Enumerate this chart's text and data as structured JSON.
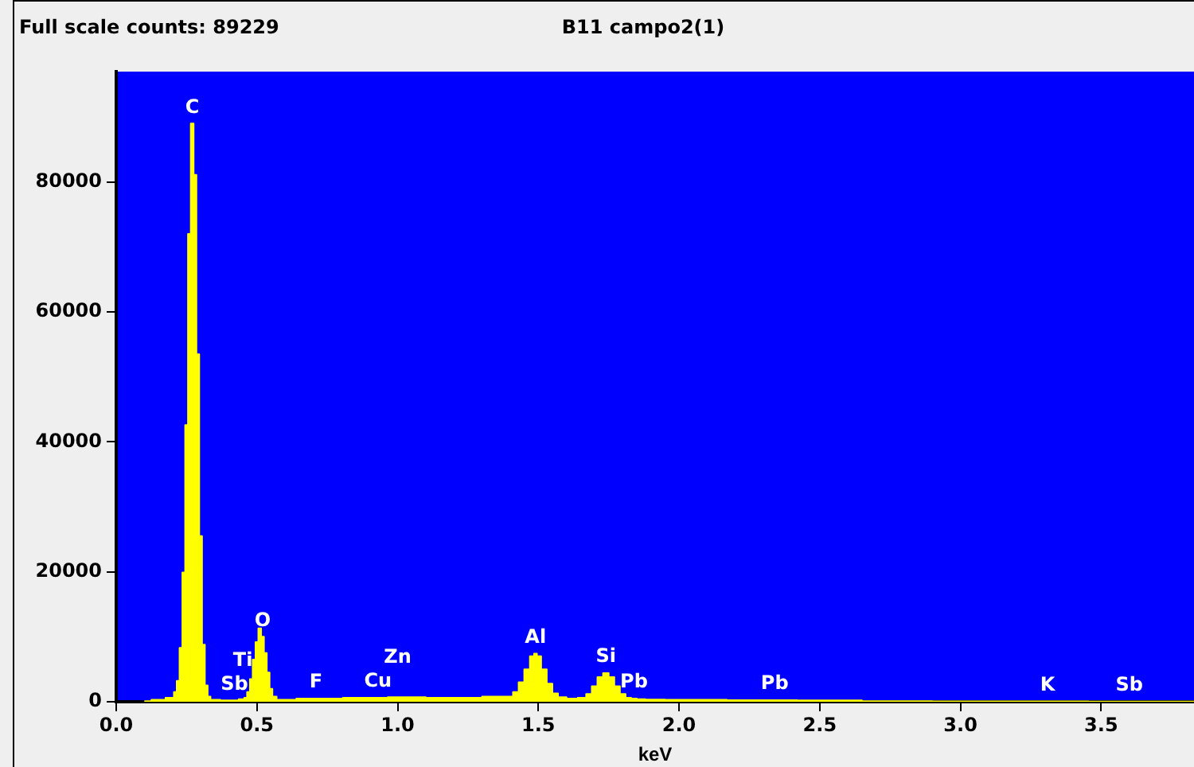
{
  "chart_data": {
    "type": "area",
    "title": "B11 campo2(1)",
    "xlabel": "keV",
    "annotations": [
      "Full scale counts: 89229",
      {
        "text": "C",
        "x": 0.27,
        "y": 89000
      },
      {
        "text": "O",
        "x": 0.52,
        "y": 10000
      },
      {
        "text": "Sb",
        "x": 0.42,
        "y": 200
      },
      {
        "text": "Ti",
        "x": 0.45,
        "y": 400
      },
      {
        "text": "F",
        "x": 0.71,
        "y": 500
      },
      {
        "text": "Cu",
        "x": 0.93,
        "y": 600
      },
      {
        "text": "Zn",
        "x": 1.0,
        "y": 700
      },
      {
        "text": "Al",
        "x": 1.49,
        "y": 7400
      },
      {
        "text": "Si",
        "x": 1.74,
        "y": 4400
      },
      {
        "text": "Pb",
        "x": 1.84,
        "y": 500
      },
      {
        "text": "Pb",
        "x": 2.34,
        "y": 250
      },
      {
        "text": "K",
        "x": 3.31,
        "y": 50
      },
      {
        "text": "Sb",
        "x": 3.6,
        "y": 40
      }
    ],
    "x": [
      0.1,
      0.15,
      0.2,
      0.21,
      0.22,
      0.23,
      0.24,
      0.25,
      0.26,
      0.27,
      0.28,
      0.29,
      0.3,
      0.31,
      0.32,
      0.33,
      0.34,
      0.4,
      0.42,
      0.45,
      0.46,
      0.47,
      0.48,
      0.49,
      0.5,
      0.51,
      0.52,
      0.53,
      0.54,
      0.55,
      0.56,
      0.58,
      0.7,
      0.71,
      0.9,
      0.93,
      1.0,
      1.2,
      1.4,
      1.42,
      1.44,
      1.46,
      1.48,
      1.49,
      1.5,
      1.52,
      1.54,
      1.56,
      1.58,
      1.62,
      1.66,
      1.68,
      1.7,
      1.72,
      1.74,
      1.76,
      1.78,
      1.8,
      1.82,
      1.84,
      1.86,
      1.9,
      2.0,
      2.34,
      2.5,
      2.8,
      3.0,
      3.31,
      3.6,
      3.83
    ],
    "series": [
      {
        "color": "#ffff00",
        "values": [
          100,
          300,
          600,
          1500,
          3200,
          8300,
          19900,
          42600,
          72000,
          89000,
          81100,
          53500,
          25500,
          8800,
          2500,
          800,
          300,
          200,
          200,
          400,
          600,
          1500,
          3500,
          6500,
          9200,
          11300,
          10000,
          7500,
          4500,
          2000,
          800,
          300,
          500,
          500,
          600,
          600,
          700,
          600,
          800,
          1500,
          3000,
          5000,
          7000,
          7400,
          7000,
          5000,
          2800,
          1300,
          700,
          500,
          600,
          1200,
          2400,
          3800,
          4400,
          3800,
          2400,
          1200,
          600,
          500,
          400,
          350,
          300,
          250,
          200,
          100,
          50,
          50,
          40,
          30
        ]
      }
    ],
    "xlim": [
      0,
      3.83
    ],
    "ylim": [
      0,
      97000
    ],
    "xticks": [
      {
        "value": 0,
        "label": "0.0"
      },
      {
        "value": 0.5,
        "label": "0.5"
      },
      {
        "value": 1,
        "label": "1.0"
      },
      {
        "value": 1.5,
        "label": "1.5"
      },
      {
        "value": 2,
        "label": "2.0"
      },
      {
        "value": 2.5,
        "label": "2.5"
      },
      {
        "value": 3,
        "label": "3.0"
      },
      {
        "value": 3.5,
        "label": "3.5"
      }
    ],
    "yticks": [
      0,
      20000,
      40000,
      60000,
      80000
    ],
    "grid": false,
    "legend": false
  }
}
